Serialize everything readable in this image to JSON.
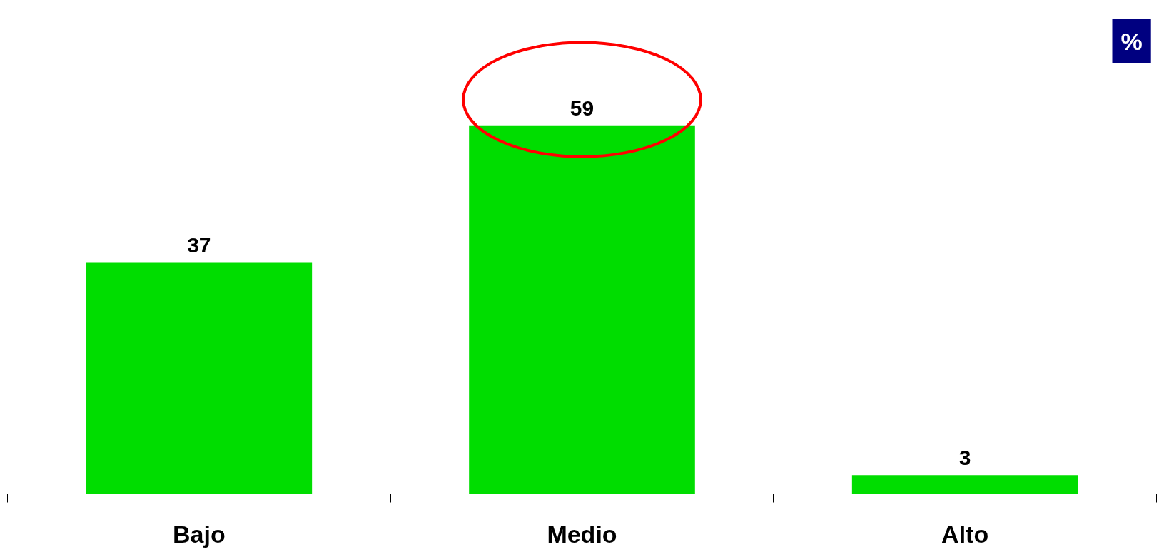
{
  "chart_data": {
    "type": "bar",
    "categories": [
      "Bajo",
      "Medio",
      "Alto"
    ],
    "values": [
      37,
      59,
      3
    ],
    "color": "#00dd00",
    "data_labels": true,
    "grid": false,
    "tick_labels": "x",
    "annotations": [
      "%"
    ]
  }
}
